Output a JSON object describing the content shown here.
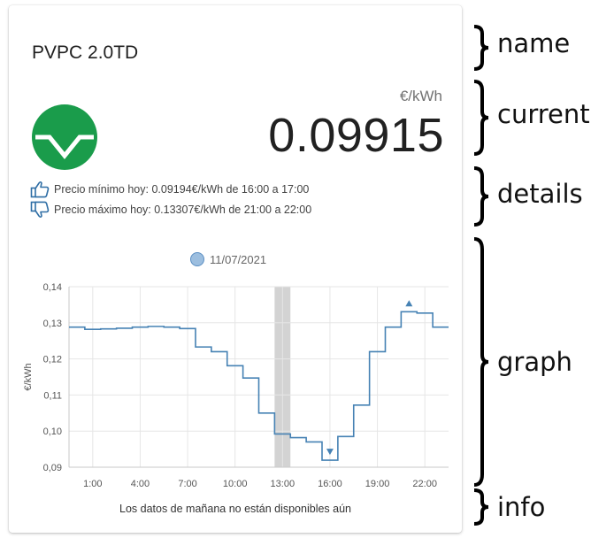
{
  "card": {
    "name": "PVPC 2.0TD",
    "unit": "€/kWh",
    "current_price": "0.09915",
    "status_color": "#1a9c4b",
    "details": {
      "min_text": "Precio mínimo hoy: 0.09194€/kWh de 16:00 a 17:00",
      "min_icon": "thumbs-up-icon",
      "max_text": "Precio máximo hoy: 0.13307€/kWh de 21:00 a 22:00",
      "max_icon": "thumbs-down-icon"
    },
    "info": "Los datos de mañana no están disponibles aún"
  },
  "annotations": {
    "name": "name",
    "current": "current",
    "details": "details",
    "graph": "graph",
    "info": "info"
  },
  "chart_data": {
    "type": "line",
    "step": true,
    "legend": [
      "11/07/2021"
    ],
    "ylabel": "€/kWh",
    "xlabel": "",
    "ylim": [
      0.09,
      0.14
    ],
    "yticks": [
      "0,09",
      "0,10",
      "0,11",
      "0,12",
      "0,13",
      "0,14"
    ],
    "yticks_values": [
      0.09,
      0.1,
      0.11,
      0.12,
      0.13,
      0.14
    ],
    "xticks": [
      "1:00",
      "4:00",
      "7:00",
      "10:00",
      "13:00",
      "16:00",
      "19:00",
      "22:00"
    ],
    "xticks_hours": [
      1,
      4,
      7,
      10,
      13,
      16,
      19,
      22
    ],
    "grid": true,
    "series_color": "#4682b4",
    "current_hour": 13,
    "series": [
      {
        "hours": [
          0,
          1,
          2,
          3,
          4,
          5,
          6,
          7,
          8,
          9,
          10,
          11,
          12,
          13,
          14,
          15,
          16,
          17,
          18,
          19,
          20,
          21,
          22,
          23
        ],
        "values": [
          0.1288,
          0.1282,
          0.1283,
          0.1285,
          0.1288,
          0.129,
          0.1288,
          0.1284,
          0.1233,
          0.122,
          0.1181,
          0.1147,
          0.105,
          0.0992,
          0.0982,
          0.097,
          0.09194,
          0.0985,
          0.1072,
          0.122,
          0.1288,
          0.13307,
          0.1327,
          0.1288
        ]
      }
    ],
    "min_marker": {
      "hour": 16,
      "value": 0.09194
    },
    "max_marker": {
      "hour": 21,
      "value": 0.13307
    }
  }
}
